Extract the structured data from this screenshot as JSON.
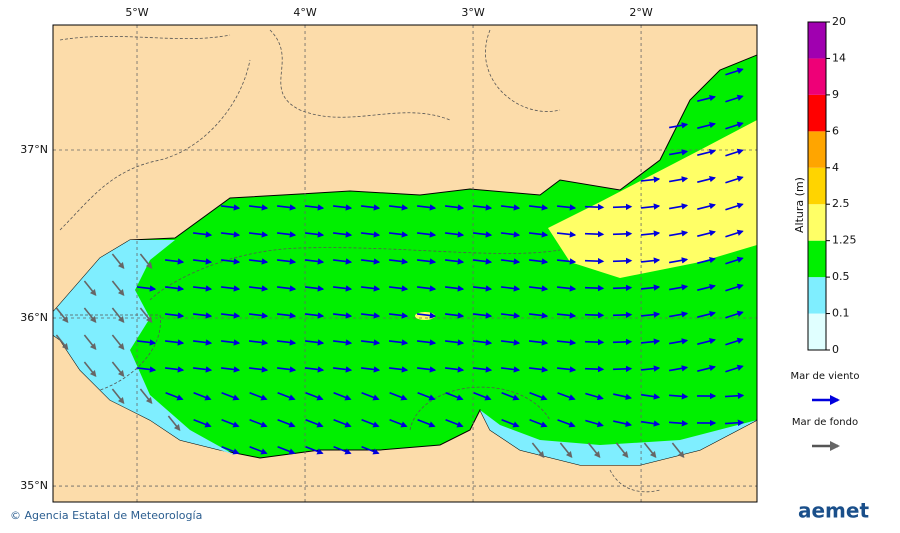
{
  "map": {
    "xlim": [
      -5.5,
      -1.31
    ],
    "ylim": [
      34.905,
      37.744
    ],
    "lon_ticks": [
      {
        "value": -5,
        "label": "5°W"
      },
      {
        "value": -4,
        "label": "4°W"
      },
      {
        "value": -3,
        "label": "3°W"
      },
      {
        "value": -2,
        "label": "2°W"
      }
    ],
    "lat_ticks": [
      {
        "value": 37,
        "label": "37°N"
      },
      {
        "value": 36,
        "label": "36°N"
      },
      {
        "value": 35,
        "label": "35°N"
      }
    ],
    "grid": true,
    "colorbar": {
      "label": "Altura (m)",
      "levels": [
        0,
        0.1,
        0.5,
        1.25,
        2.5,
        4,
        6,
        9,
        14,
        20
      ],
      "colors": [
        "#e0ffff",
        "#7feeff",
        "#00f000",
        "#ffff66",
        "#ffd400",
        "#ffa500",
        "#ff0000",
        "#ee0077",
        "#a000b0"
      ]
    },
    "legend": [
      {
        "name": "Mar de viento",
        "color": "#0000dd"
      },
      {
        "name": "Mar de fondo",
        "color": "#555555"
      }
    ],
    "footer": {
      "credit": "© Agencia Estatal de Meteorología",
      "logo": "aemet"
    }
  }
}
